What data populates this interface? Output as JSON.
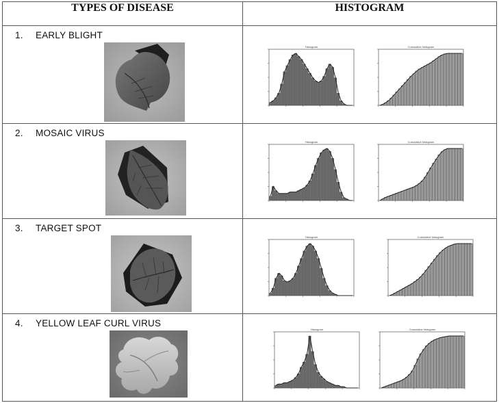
{
  "headers": {
    "diseases": "TYPES OF DISEASE",
    "histogram": "HISTOGRAM"
  },
  "rows": [
    {
      "number": "1.",
      "name": "EARLY BLIGHT"
    },
    {
      "number": "2.",
      "name": "MOSAIC VIRUS"
    },
    {
      "number": "3.",
      "name": "TARGET SPOT"
    },
    {
      "number": "4.",
      "name": "YELLOW LEAF CURL VIRUS"
    }
  ],
  "chart_data": [
    {
      "type": "bar",
      "title": "Histogram",
      "disease": "EARLY BLIGHT",
      "values": [
        2,
        3,
        5,
        8,
        14,
        22,
        26,
        30,
        33,
        34,
        32,
        30,
        27,
        24,
        21,
        18,
        16,
        15,
        16,
        19,
        24,
        27,
        25,
        18,
        8,
        3,
        1,
        0,
        0,
        0
      ]
    },
    {
      "type": "area",
      "title": "Cumulative histogram",
      "disease": "EARLY BLIGHT",
      "values": [
        0,
        2,
        5,
        9,
        14,
        20,
        26,
        32,
        38,
        44,
        50,
        56,
        61,
        66,
        70,
        73,
        76,
        79,
        82,
        86,
        90,
        94,
        97,
        99,
        100,
        100,
        100,
        100,
        100,
        100
      ]
    },
    {
      "type": "bar",
      "title": "Histogram",
      "disease": "MOSAIC VIRUS",
      "values": [
        3,
        10,
        7,
        5,
        5,
        5,
        5,
        6,
        6,
        6,
        7,
        8,
        9,
        11,
        14,
        19,
        25,
        30,
        34,
        36,
        37,
        35,
        30,
        22,
        13,
        6,
        2,
        1,
        0,
        0
      ]
    },
    {
      "type": "area",
      "title": "Cumulative histogram",
      "disease": "MOSAIC VIRUS",
      "values": [
        0,
        3,
        6,
        8,
        10,
        12,
        14,
        16,
        18,
        20,
        22,
        24,
        26,
        29,
        33,
        38,
        45,
        54,
        63,
        72,
        80,
        88,
        94,
        98,
        100,
        100,
        100,
        100,
        100,
        100
      ]
    },
    {
      "type": "bar",
      "title": "Histogram",
      "disease": "TARGET SPOT",
      "values": [
        2,
        6,
        14,
        18,
        16,
        12,
        11,
        12,
        14,
        18,
        24,
        30,
        36,
        40,
        42,
        40,
        36,
        30,
        22,
        14,
        8,
        4,
        2,
        1,
        0,
        0,
        0,
        0,
        0,
        0
      ]
    },
    {
      "type": "area",
      "title": "Cumulative histogram",
      "disease": "TARGET SPOT",
      "values": [
        0,
        2,
        5,
        8,
        11,
        14,
        17,
        20,
        23,
        27,
        31,
        36,
        42,
        49,
        56,
        63,
        70,
        77,
        83,
        88,
        92,
        95,
        97,
        99,
        100,
        100,
        100,
        100,
        100,
        100
      ]
    },
    {
      "type": "bar",
      "title": "Histogram",
      "disease": "YELLOW LEAF CURL VIRUS",
      "values": [
        2,
        3,
        3,
        4,
        4,
        5,
        6,
        8,
        11,
        16,
        20,
        26,
        40,
        28,
        18,
        12,
        9,
        7,
        5,
        4,
        3,
        2,
        2,
        1,
        1,
        0,
        0,
        0,
        0,
        0
      ]
    },
    {
      "type": "area",
      "title": "Cumulative histogram",
      "disease": "YELLOW LEAF CURL VIRUS",
      "values": [
        0,
        2,
        4,
        6,
        8,
        10,
        12,
        14,
        17,
        21,
        26,
        33,
        44,
        56,
        66,
        74,
        81,
        86,
        90,
        93,
        95,
        97,
        98,
        99,
        100,
        100,
        100,
        100,
        100,
        100
      ]
    }
  ]
}
